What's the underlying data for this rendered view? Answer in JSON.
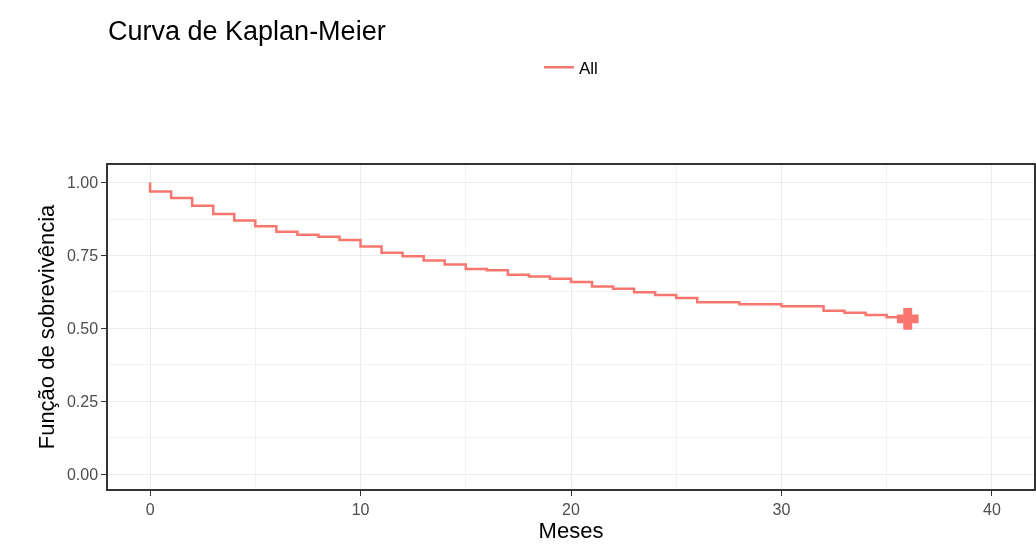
{
  "chart_data": {
    "type": "step",
    "title": "Curva de Kaplan-Meier",
    "xlabel": "Meses",
    "ylabel": "Função de sobrevivência",
    "series": [
      {
        "name": "All",
        "color": "#f8766d",
        "x": [
          0,
          0,
          1,
          2,
          3,
          4,
          5,
          6,
          7,
          8,
          9,
          10,
          11,
          12,
          13,
          14,
          15,
          16,
          17,
          18,
          19,
          20,
          21,
          22,
          23,
          24,
          25,
          26,
          28,
          30,
          32,
          33,
          34,
          35,
          36
        ],
        "values": [
          1.0,
          0.969,
          0.947,
          0.92,
          0.892,
          0.87,
          0.85,
          0.831,
          0.821,
          0.814,
          0.803,
          0.781,
          0.759,
          0.747,
          0.733,
          0.719,
          0.704,
          0.699,
          0.684,
          0.678,
          0.67,
          0.659,
          0.644,
          0.636,
          0.624,
          0.615,
          0.604,
          0.59,
          0.583,
          0.576,
          0.561,
          0.554,
          0.546,
          0.538,
          0.533
        ]
      },
      {
        "type": "scatter",
        "color": "#f8766d",
        "marker": "cross",
        "x": [
          36
        ],
        "values": [
          0.533
        ]
      }
    ],
    "xlim": [
      -2,
      42
    ],
    "xticks": [
      0,
      {
        "value": 5,
        "label": null
      },
      10,
      {
        "value": 15,
        "label": null
      },
      20,
      {
        "value": 25,
        "label": null
      },
      30,
      {
        "value": 35,
        "label": null
      },
      40
    ],
    "ylim": [
      -0.05,
      1.06
    ],
    "yticks": [
      {
        "value": 0,
        "label": "0.00"
      },
      {
        "value": 0.125,
        "label": null
      },
      {
        "value": 0.25,
        "label": "0.25"
      },
      {
        "value": 0.375,
        "label": null
      },
      {
        "value": 0.5,
        "label": "0.50"
      },
      {
        "value": 0.625,
        "label": null
      },
      {
        "value": 0.75,
        "label": "0.75"
      },
      {
        "value": 0.875,
        "label": null
      },
      {
        "value": 1,
        "label": "1.00"
      }
    ],
    "grid": true,
    "legend": "top",
    "marker": "none",
    "line_style": "solid"
  }
}
